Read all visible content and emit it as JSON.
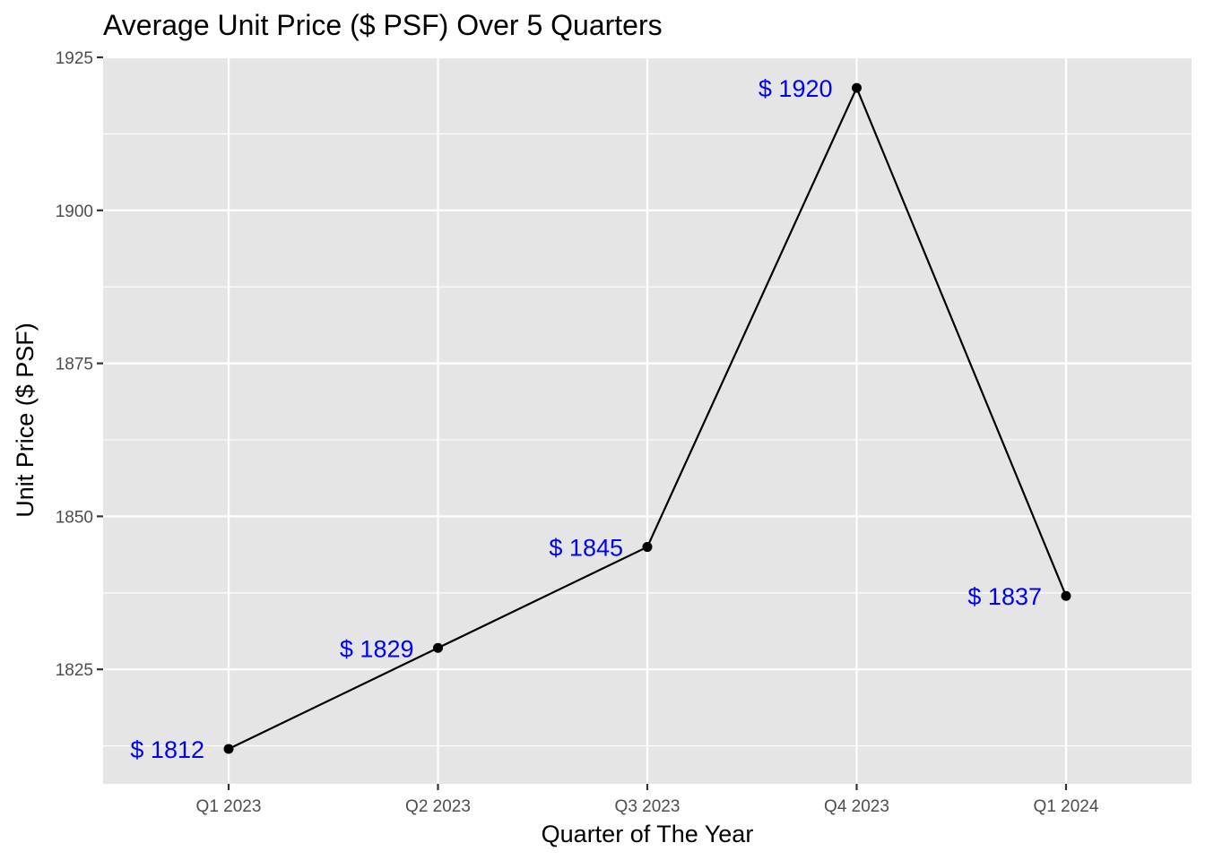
{
  "chart_data": {
    "type": "line",
    "title": "Average Unit Price ($ PSF) Over 5 Quarters",
    "xlabel": "Quarter of The Year",
    "ylabel": "Unit Price ($ PSF)",
    "categories": [
      "Q1 2023",
      "Q2 2023",
      "Q3 2023",
      "Q4 2023",
      "Q1 2024"
    ],
    "values": [
      1812,
      1828.5,
      1845,
      1920,
      1837
    ],
    "data_labels": [
      "$ 1812",
      "$ 1829",
      "$ 1845",
      "$ 1920",
      "$ 1837"
    ],
    "y_ticks": [
      1825,
      1850,
      1875,
      1900,
      1925
    ],
    "ylim": [
      1806,
      1925
    ],
    "grid": true,
    "legend": "none",
    "colors": {
      "panel_background": "#e5e5e5",
      "gridline": "#ffffff",
      "line": "#000000",
      "point": "#000000",
      "data_label": "#0000ff"
    }
  }
}
